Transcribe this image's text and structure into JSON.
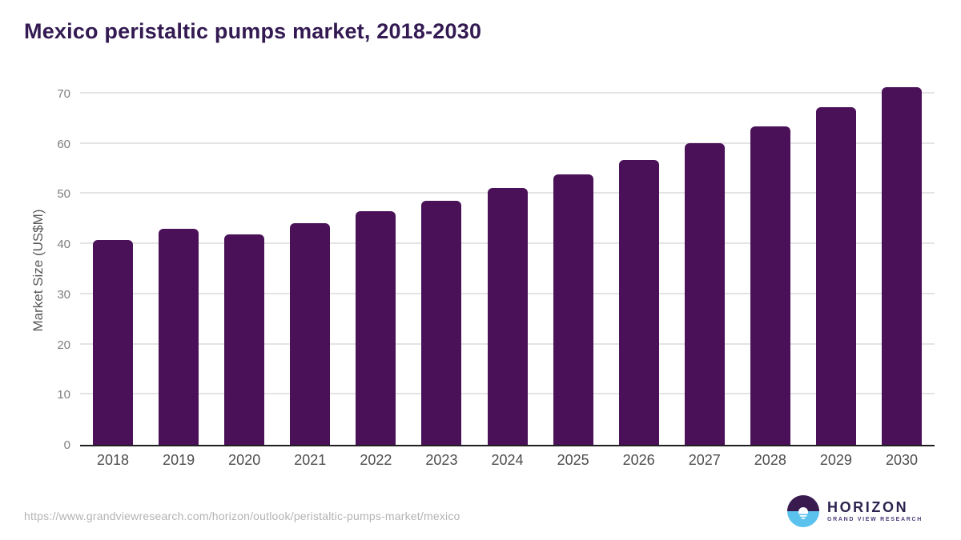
{
  "header": {
    "title": "Mexico peristaltic pumps market, 2018-2030"
  },
  "chart_data": {
    "type": "bar",
    "title": "Mexico peristaltic pumps market, 2018-2030",
    "categories": [
      "2018",
      "2019",
      "2020",
      "2021",
      "2022",
      "2023",
      "2024",
      "2025",
      "2026",
      "2027",
      "2028",
      "2029",
      "2030"
    ],
    "values": [
      40.8,
      43.0,
      41.9,
      44.1,
      46.5,
      48.6,
      51.1,
      53.9,
      56.8,
      60.1,
      63.5,
      67.3,
      71.2
    ],
    "xlabel": "",
    "ylabel": "Market Size (US$M)",
    "ylim": [
      0,
      73
    ],
    "yticks": [
      0,
      10,
      20,
      30,
      40,
      50,
      60,
      70
    ],
    "grid": true,
    "legend": "none",
    "bar_color": "#4a1159"
  },
  "footer": {
    "source_url": "https://www.grandviewresearch.com/horizon/outlook/peristaltic-pumps-market/mexico",
    "logo": {
      "name": "HORIZON",
      "subtitle": "GRAND VIEW RESEARCH"
    }
  },
  "colors": {
    "title": "#331a52",
    "bar": "#4a1159",
    "gridline": "#e4e4e4",
    "axis_line": "#1f1f1f",
    "y_tick_text": "#7d7d7d",
    "x_tick_text": "#4d4d4d",
    "url_text": "#b3b3b3",
    "logo_dark": "#2e2450",
    "logo_purple": "#4d3c78",
    "logo_blue": "#5bc2ee"
  }
}
